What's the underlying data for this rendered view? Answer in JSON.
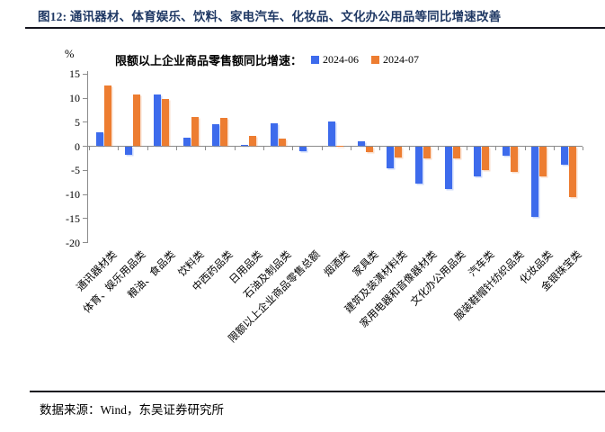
{
  "figure": {
    "title": "图12: 通讯器材、体育娱乐、饮料、家电汽车、化妆品、文化办公用品等同比增速改善",
    "source": "数据来源：Wind，东吴证券研究所"
  },
  "chart_data": {
    "type": "bar",
    "title": "限额以上企业商品零售额同比增速：",
    "ylabel": "%",
    "ylim": [
      -20,
      15
    ],
    "yticks": [
      15,
      10,
      5,
      0,
      -5,
      -10,
      -15,
      -20
    ],
    "grid": false,
    "legend_position": "top",
    "categories": [
      "通讯器材类",
      "体育、娱乐用品类",
      "粮油、食品类",
      "饮料类",
      "中西药品类",
      "日用品类",
      "石油及制品类",
      "限额以上企业商品零售总额",
      "烟酒类",
      "家具类",
      "建筑及装潢材料类",
      "家用电器和音像器材类",
      "文化办公用品类",
      "汽车类",
      "服装鞋帽针纺织品类",
      "化妆品类",
      "金银珠宝类"
    ],
    "series": [
      {
        "name": "2024-06",
        "color": "#3d6bec",
        "values": [
          2.9,
          -1.6,
          10.8,
          1.7,
          4.6,
          0.3,
          4.8,
          -1.0,
          5.2,
          1.1,
          -4.5,
          -7.6,
          -8.7,
          -6.2,
          -1.9,
          -14.6,
          -3.7
        ]
      },
      {
        "name": "2024-07",
        "color": "#ed7d31",
        "values": [
          12.7,
          10.7,
          9.9,
          6.1,
          5.8,
          2.1,
          1.6,
          0.0,
          0.1,
          -1.1,
          -2.2,
          -2.4,
          -2.4,
          -4.9,
          -5.2,
          -6.1,
          -10.4
        ]
      }
    ]
  },
  "colors": {
    "title_text": "#1f3864",
    "axis": "#8c8c8c",
    "rule": "#15151f",
    "bar_blue": "#3d6bec",
    "bar_orange": "#ed7d31"
  }
}
